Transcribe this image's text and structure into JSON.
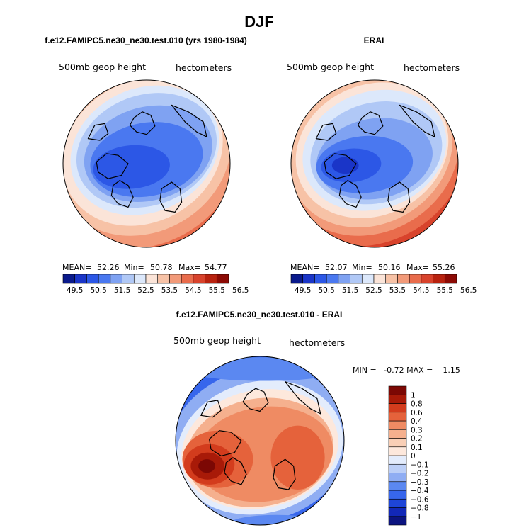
{
  "chart_data": {
    "type": "heatmap",
    "title": "DJF",
    "panels": [
      {
        "title": "f.e12.FAMIPC5.ne30_ne30.test.010 (yrs 1980-1984)",
        "left_label": "500mb geop height",
        "right_label": "hectometers",
        "stats": {
          "mean_label": "MEAN=",
          "mean": "52.26",
          "min_label": "Min=",
          "min": "50.78",
          "max_label": "Max=",
          "max": "54.77"
        },
        "colorbar_ticks": [
          "49.5",
          "50.5",
          "51.5",
          "52.5",
          "53.5",
          "54.5",
          "55.5",
          "56.5"
        ],
        "field": {
          "cold_center_value": 50.8,
          "warm_rim_value": 54.8
        }
      },
      {
        "title": "ERAI",
        "left_label": "500mb geop height",
        "right_label": "hectometers",
        "stats": {
          "mean_label": "MEAN=",
          "mean": "52.07",
          "min_label": "Min=",
          "min": "50.16",
          "max_label": "Max=",
          "max": "55.26"
        },
        "colorbar_ticks": [
          "49.5",
          "50.5",
          "51.5",
          "52.5",
          "53.5",
          "54.5",
          "55.5",
          "56.5"
        ],
        "field": {
          "cold_center_value": 50.2,
          "warm_rim_value": 55.3
        }
      },
      {
        "title": "f.e12.FAMIPC5.ne30_ne30.test.010 - ERAI",
        "left_label": "500mb geop height",
        "right_label": "hectometers",
        "stats_text": "MIN =   -0.72 MAX =    1.15",
        "colorbar_ticks": [
          "1",
          "0.8",
          "0.6",
          "0.4",
          "0.3",
          "0.2",
          "0.1",
          "0",
          "−0.1",
          "−0.2",
          "−0.3",
          "−0.4",
          "−0.6",
          "−0.8",
          "−1"
        ],
        "field": {
          "min": -0.72,
          "max": 1.15
        }
      }
    ],
    "palette_abs": [
      "#0a1a8c",
      "#1a35c8",
      "#2c57e6",
      "#4a78f0",
      "#7fa2f2",
      "#b0c8f6",
      "#dce8fb",
      "#fbe4d8",
      "#f7c2a6",
      "#f29a79",
      "#e96c4c",
      "#d8432c",
      "#b8220f",
      "#8c0a04"
    ],
    "palette_diff": [
      "#0c1480",
      "#1228b8",
      "#1e45d8",
      "#3766ec",
      "#5b88f1",
      "#8fadf3",
      "#bccff7",
      "#e3ecfc",
      "#fde8dc",
      "#f9cfb6",
      "#f5b08e",
      "#ef8b63",
      "#e5623b",
      "#d33c1d",
      "#a81a08",
      "#7c0804"
    ]
  }
}
